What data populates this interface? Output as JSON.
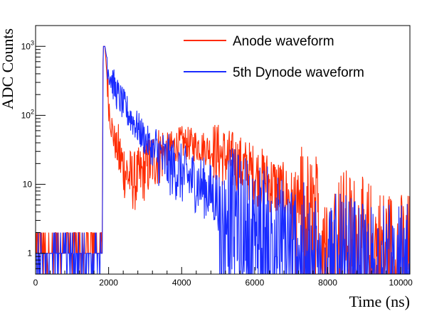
{
  "chart_data": {
    "type": "line",
    "xlabel": "Time (ns)",
    "ylabel": "ADC Counts",
    "xlim": [
      0,
      10250
    ],
    "ylim": [
      0.5,
      2000
    ],
    "yscale": "log",
    "x_ticks": [
      0,
      2000,
      4000,
      6000,
      8000,
      10000
    ],
    "x_tick_labels": [
      "0",
      "2000",
      "4000",
      "6000",
      "8000",
      "10000"
    ],
    "y_ticks": [
      1,
      10,
      100,
      1000
    ],
    "y_tick_labels": [
      {
        "base": "1",
        "exp": ""
      },
      {
        "base": "10",
        "exp": ""
      },
      {
        "base": "10",
        "exp": "2"
      },
      {
        "base": "10",
        "exp": "3"
      }
    ],
    "grid": false,
    "legend_position": "top-right",
    "series": [
      {
        "name": "Anode waveform",
        "color": "#ff2a00",
        "envelope": [
          [
            0,
            1.4
          ],
          [
            1820,
            1.4
          ],
          [
            1850,
            1000
          ],
          [
            1900,
            1000
          ],
          [
            1950,
            400
          ],
          [
            2000,
            150
          ],
          [
            2100,
            60
          ],
          [
            2200,
            35
          ],
          [
            2400,
            18
          ],
          [
            2600,
            12
          ],
          [
            2700,
            11
          ],
          [
            2800,
            12
          ],
          [
            3000,
            16
          ],
          [
            3200,
            22
          ],
          [
            3500,
            30
          ],
          [
            4000,
            40
          ],
          [
            4500,
            36
          ],
          [
            5000,
            28
          ],
          [
            5500,
            20
          ],
          [
            6000,
            14
          ],
          [
            6500,
            10
          ],
          [
            7000,
            6
          ],
          [
            7500,
            4
          ],
          [
            8000,
            3
          ],
          [
            8500,
            2.2
          ],
          [
            9000,
            1.6
          ],
          [
            9500,
            1.2
          ],
          [
            10000,
            1.0
          ],
          [
            10250,
            1.0
          ]
        ]
      },
      {
        "name": "5th Dynode waveform",
        "color": "#1a2bff",
        "envelope": [
          [
            0,
            1.2
          ],
          [
            1830,
            1.2
          ],
          [
            1850,
            1000
          ],
          [
            1900,
            1000
          ],
          [
            2000,
            450
          ],
          [
            2200,
            220
          ],
          [
            2400,
            140
          ],
          [
            2600,
            95
          ],
          [
            2800,
            65
          ],
          [
            3000,
            45
          ],
          [
            3200,
            32
          ],
          [
            3500,
            22
          ],
          [
            4000,
            14
          ],
          [
            4500,
            10
          ],
          [
            5000,
            6
          ],
          [
            5500,
            4
          ],
          [
            6000,
            3
          ],
          [
            6500,
            2.2
          ],
          [
            7000,
            1.6
          ],
          [
            8000,
            1.0
          ],
          [
            9000,
            0.8
          ],
          [
            10000,
            0.7
          ],
          [
            10250,
            0.7
          ]
        ]
      }
    ]
  }
}
